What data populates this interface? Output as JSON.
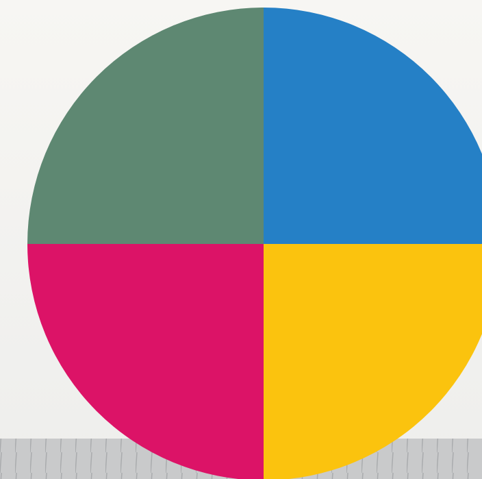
{
  "chart_data": {
    "type": "pie",
    "values": [
      25,
      25,
      25,
      25
    ],
    "colors": [
      "#2580c6",
      "#fbc30e",
      "#dc1367",
      "#5e8872"
    ]
  }
}
